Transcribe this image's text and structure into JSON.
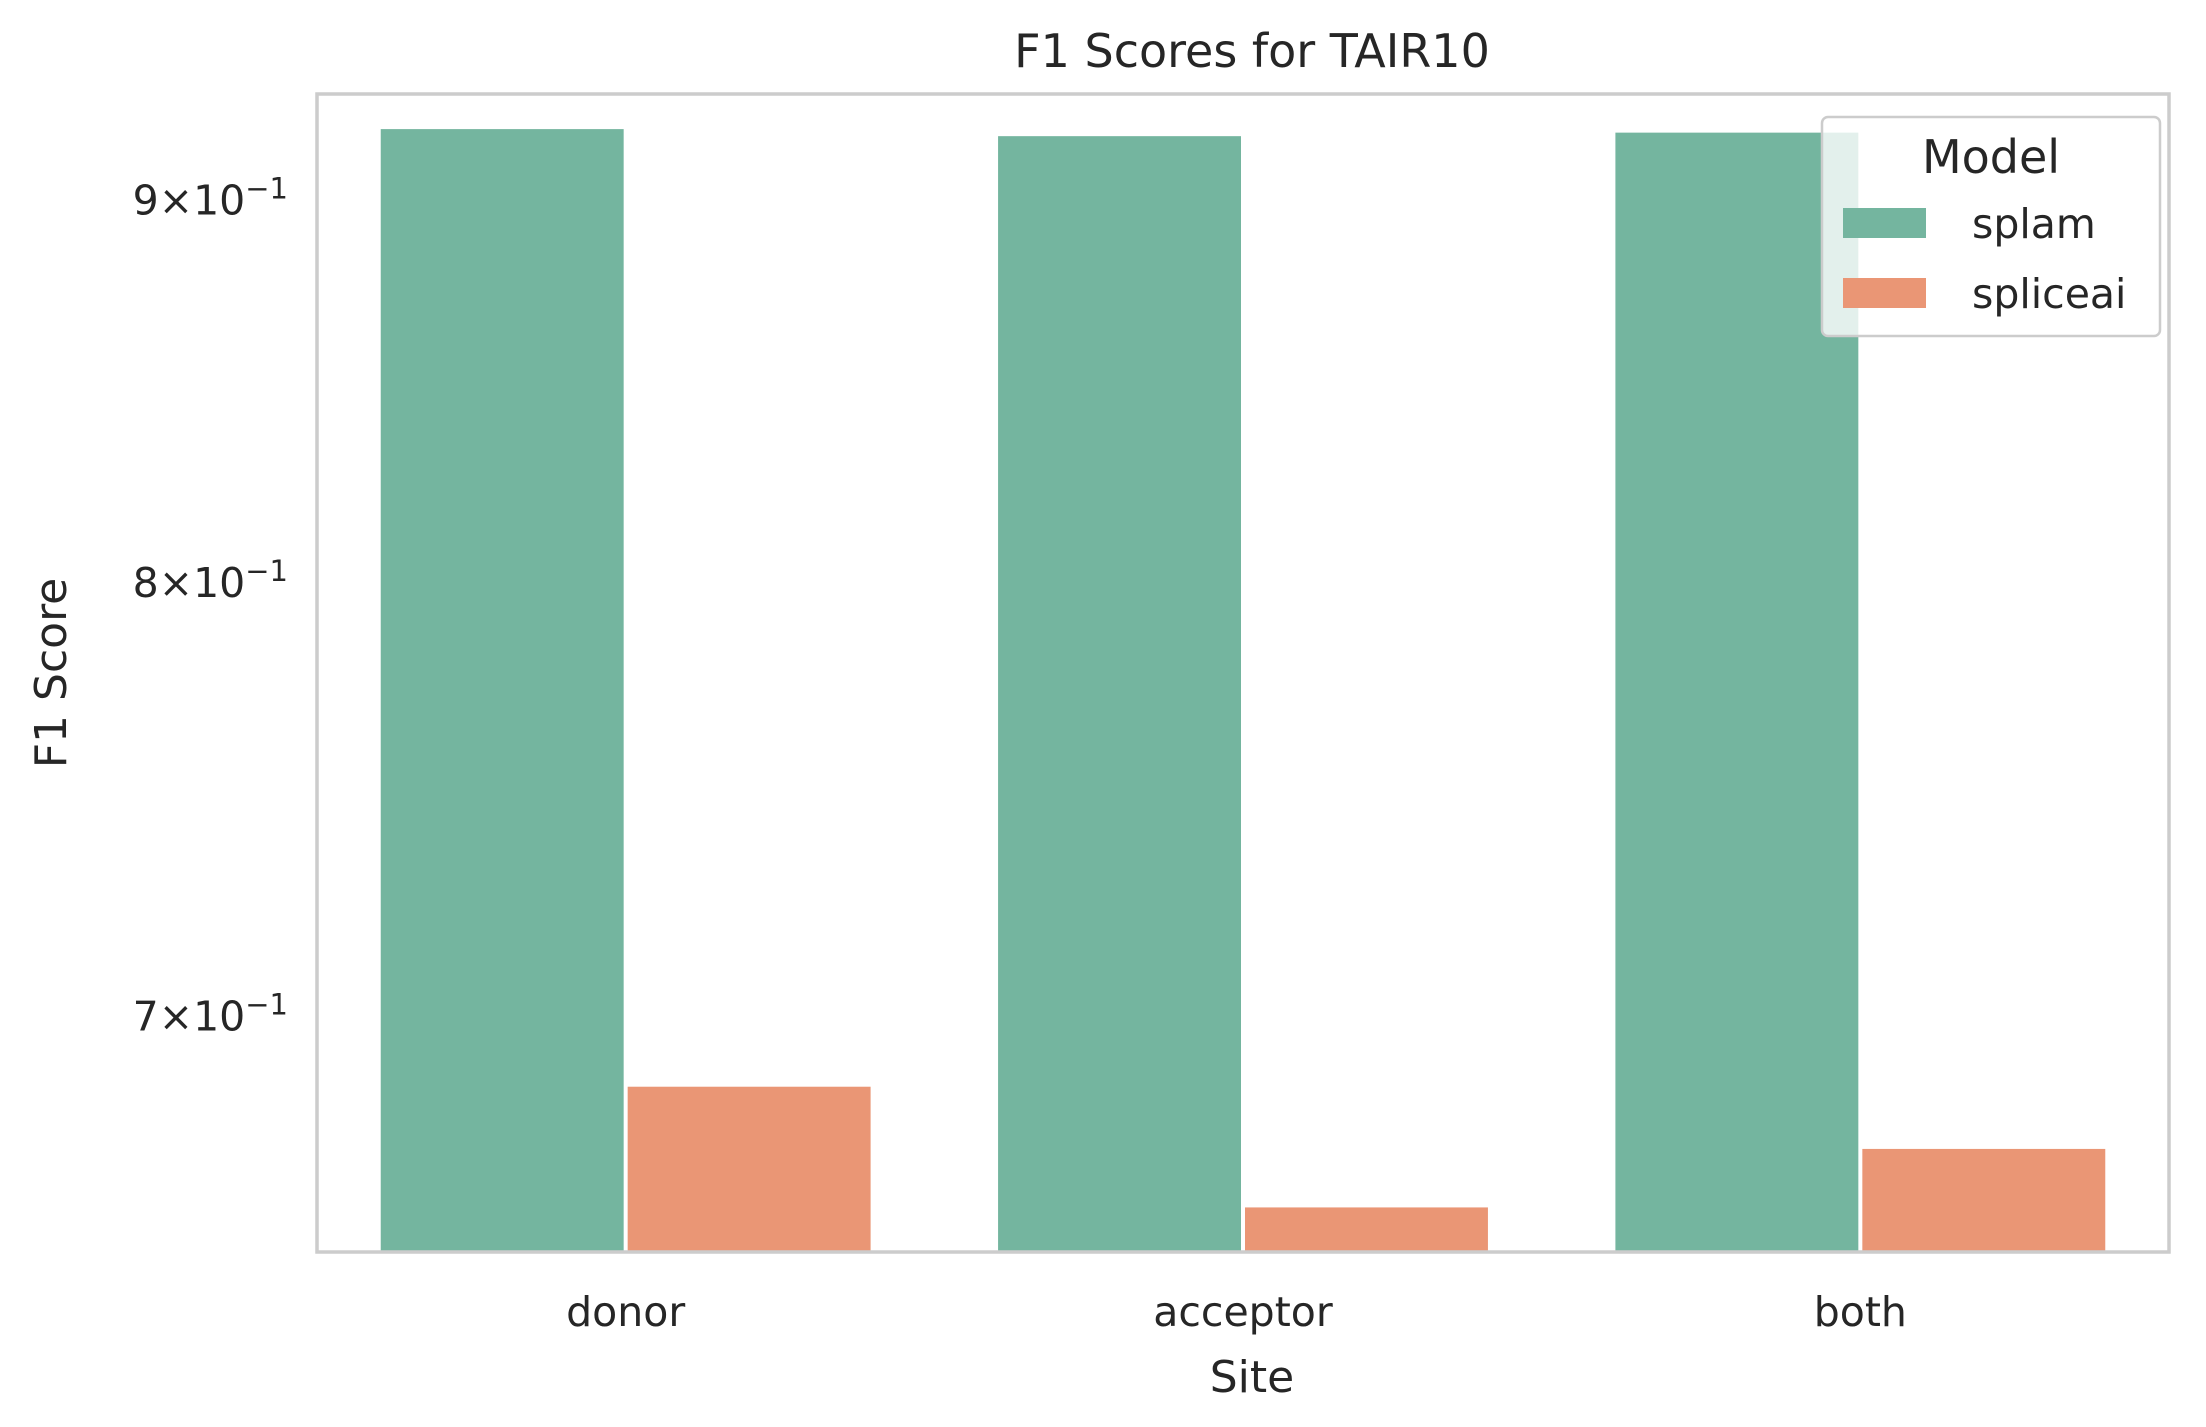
{
  "chart_data": {
    "type": "bar",
    "title": "F1 Scores for TAIR10",
    "xlabel": "Site",
    "ylabel": "F1 Score",
    "categories": [
      "donor",
      "acceptor",
      "both"
    ],
    "series": [
      {
        "name": "splam",
        "values": [
          0.92,
          0.918,
          0.919
        ]
      },
      {
        "name": "spliceai",
        "values": [
          0.685,
          0.66,
          0.672
        ]
      }
    ],
    "ylim": [
      0.651,
      0.93
    ],
    "yscale": "log",
    "yticks": [
      {
        "value": 0.7,
        "mantissa": "7",
        "base": "10",
        "exponent": "−1"
      },
      {
        "value": 0.8,
        "mantissa": "8",
        "base": "10",
        "exponent": "−1"
      },
      {
        "value": 0.9,
        "mantissa": "9",
        "base": "10",
        "exponent": "−1"
      }
    ],
    "grid": false,
    "legend": {
      "title": "Model",
      "position": "top-right"
    },
    "colors": {
      "splam": "#74b59f",
      "spliceai": "#ea9675",
      "frame": "#cccccc",
      "text": "#262626"
    }
  }
}
